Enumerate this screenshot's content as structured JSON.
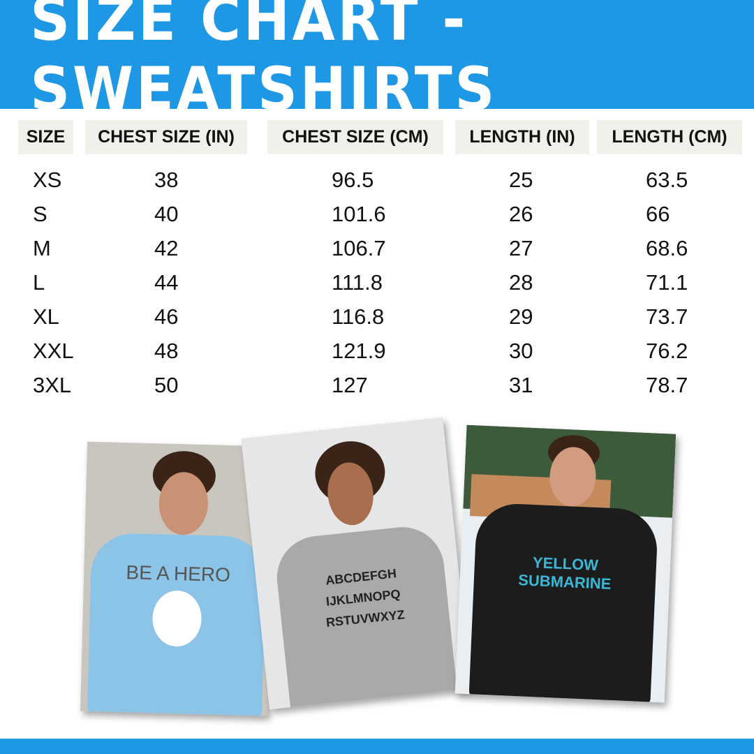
{
  "title": "SIZE CHART - SWEATSHIRTS",
  "colors": {
    "accent": "#1e98e4",
    "header_cell": "#f0efea"
  },
  "table": {
    "headers": [
      "SIZE",
      "CHEST SIZE (IN)",
      "CHEST SIZE (CM)",
      "LENGTH (IN)",
      "LENGTH (CM)"
    ],
    "rows": [
      [
        "XS",
        "38",
        "96.5",
        "25",
        "63.5"
      ],
      [
        "S",
        "40",
        "101.6",
        "26",
        "66"
      ],
      [
        "M",
        "42",
        "106.7",
        "27",
        "68.6"
      ],
      [
        "L",
        "44",
        "111.8",
        "28",
        "71.1"
      ],
      [
        "XL",
        "46",
        "116.8",
        "29",
        "73.7"
      ],
      [
        "XXL",
        "48",
        "121.9",
        "30",
        "76.2"
      ],
      [
        "3XL",
        "50",
        "127",
        "31",
        "78.7"
      ]
    ]
  },
  "photos": [
    {
      "shirt_text": "BE A HERO",
      "shirt_color": "#8cc4e8"
    },
    {
      "shirt_text": "ABCDEFGH IJKLMNOPQ RSTUVWXYZ",
      "shirt_color": "#a9a9a9"
    },
    {
      "shirt_text": "YELLOW SUBMARINE",
      "shirt_color": "#1c1c1c"
    }
  ]
}
